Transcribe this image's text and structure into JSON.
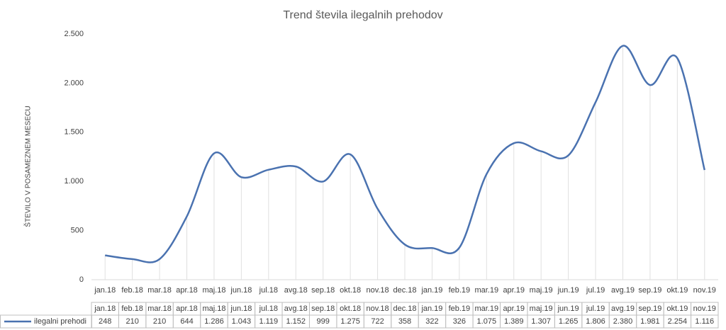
{
  "chart_data": {
    "type": "line",
    "title": "Trend števila ilegalnih prehodov",
    "y_label": "ŠTEVILO V POSAMEZNEM MESECU",
    "categories": [
      "jan.18",
      "feb.18",
      "mar.18",
      "apr.18",
      "maj.18",
      "jun.18",
      "jul.18",
      "avg.18",
      "sep.18",
      "okt.18",
      "nov.18",
      "dec.18",
      "jan.19",
      "feb.19",
      "mar.19",
      "apr.19",
      "maj.19",
      "jun.19",
      "jul.19",
      "avg.19",
      "sep.19",
      "okt.19",
      "nov.19"
    ],
    "series": [
      {
        "name": "ilegalni prehodi",
        "color": "#4a72b0",
        "values": [
          248,
          210,
          210,
          644,
          1286,
          1043,
          1119,
          1152,
          999,
          1275,
          722,
          358,
          322,
          326,
          1075,
          1389,
          1307,
          1265,
          1806,
          2380,
          1981,
          2254,
          1116
        ],
        "value_labels": [
          "248",
          "210",
          "210",
          "644",
          "1.286",
          "1.043",
          "1.119",
          "1.152",
          "999",
          "1.275",
          "722",
          "358",
          "322",
          "326",
          "1.075",
          "1.389",
          "1.307",
          "1.265",
          "1.806",
          "2.380",
          "1.981",
          "2.254",
          "1.116"
        ]
      }
    ],
    "ylim": [
      0,
      2500
    ],
    "yticks": [
      0,
      500,
      {
        "value": 1000,
        "label": "1.000"
      },
      {
        "value": 1500,
        "label": "1.500"
      },
      {
        "value": 2000,
        "label": "2.000"
      },
      {
        "value": 2500,
        "label": "2.500"
      }
    ],
    "grid": false
  }
}
